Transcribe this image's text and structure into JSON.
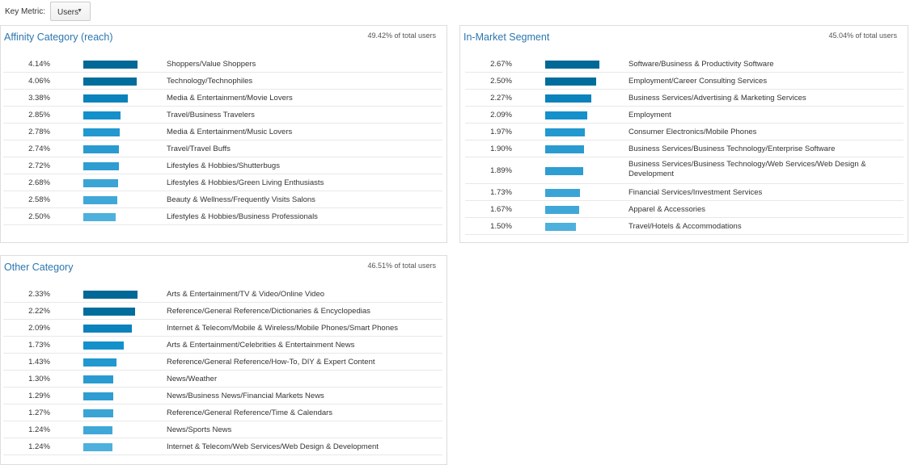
{
  "key_metric": {
    "label": "Key Metric:",
    "value": "Users"
  },
  "bar_colors": [
    "#006896",
    "#006d9c",
    "#0a82bb",
    "#1490cb",
    "#2198cf",
    "#2a9bd0",
    "#2e9dd1",
    "#3aa4d5",
    "#3fa8d8",
    "#4eb0dc"
  ],
  "panels": [
    {
      "title": "Affinity Category (reach)",
      "total": "49.42% of total users",
      "rows": [
        {
          "pct": "4.14%",
          "value": 4.14,
          "label": "Shoppers/Value Shoppers"
        },
        {
          "pct": "4.06%",
          "value": 4.06,
          "label": "Technology/Technophiles"
        },
        {
          "pct": "3.38%",
          "value": 3.38,
          "label": "Media & Entertainment/Movie Lovers"
        },
        {
          "pct": "2.85%",
          "value": 2.85,
          "label": "Travel/Business Travelers"
        },
        {
          "pct": "2.78%",
          "value": 2.78,
          "label": "Media & Entertainment/Music Lovers"
        },
        {
          "pct": "2.74%",
          "value": 2.74,
          "label": "Travel/Travel Buffs"
        },
        {
          "pct": "2.72%",
          "value": 2.72,
          "label": "Lifestyles & Hobbies/Shutterbugs"
        },
        {
          "pct": "2.68%",
          "value": 2.68,
          "label": "Lifestyles & Hobbies/Green Living Enthusiasts"
        },
        {
          "pct": "2.58%",
          "value": 2.58,
          "label": "Beauty & Wellness/Frequently Visits Salons"
        },
        {
          "pct": "2.50%",
          "value": 2.5,
          "label": "Lifestyles & Hobbies/Business Professionals"
        }
      ]
    },
    {
      "title": "In-Market Segment",
      "total": "45.04% of total users",
      "rows": [
        {
          "pct": "2.67%",
          "value": 2.67,
          "label": "Software/Business & Productivity Software"
        },
        {
          "pct": "2.50%",
          "value": 2.5,
          "label": "Employment/Career Consulting Services"
        },
        {
          "pct": "2.27%",
          "value": 2.27,
          "label": "Business Services/Advertising & Marketing Services"
        },
        {
          "pct": "2.09%",
          "value": 2.09,
          "label": "Employment"
        },
        {
          "pct": "1.97%",
          "value": 1.97,
          "label": "Consumer Electronics/Mobile Phones"
        },
        {
          "pct": "1.90%",
          "value": 1.9,
          "label": "Business Services/Business Technology/Enterprise Software"
        },
        {
          "pct": "1.89%",
          "value": 1.89,
          "label": "Business Services/Business Technology/Web Services/Web Design & Development"
        },
        {
          "pct": "1.73%",
          "value": 1.73,
          "label": "Financial Services/Investment Services"
        },
        {
          "pct": "1.67%",
          "value": 1.67,
          "label": "Apparel & Accessories"
        },
        {
          "pct": "1.50%",
          "value": 1.5,
          "label": "Travel/Hotels & Accommodations"
        }
      ]
    },
    {
      "title": "Other Category",
      "total": "46.51% of total users",
      "rows": [
        {
          "pct": "2.33%",
          "value": 2.33,
          "label": "Arts & Entertainment/TV & Video/Online Video"
        },
        {
          "pct": "2.22%",
          "value": 2.22,
          "label": "Reference/General Reference/Dictionaries & Encyclopedias"
        },
        {
          "pct": "2.09%",
          "value": 2.09,
          "label": "Internet & Telecom/Mobile & Wireless/Mobile Phones/Smart Phones"
        },
        {
          "pct": "1.73%",
          "value": 1.73,
          "label": "Arts & Entertainment/Celebrities & Entertainment News"
        },
        {
          "pct": "1.43%",
          "value": 1.43,
          "label": "Reference/General Reference/How-To, DIY & Expert Content"
        },
        {
          "pct": "1.30%",
          "value": 1.3,
          "label": "News/Weather"
        },
        {
          "pct": "1.29%",
          "value": 1.29,
          "label": "News/Business News/Financial Markets News"
        },
        {
          "pct": "1.27%",
          "value": 1.27,
          "label": "Reference/General Reference/Time & Calendars"
        },
        {
          "pct": "1.24%",
          "value": 1.24,
          "label": "News/Sports News"
        },
        {
          "pct": "1.24%",
          "value": 1.24,
          "label": "Internet & Telecom/Web Services/Web Design & Development"
        }
      ]
    }
  ]
}
